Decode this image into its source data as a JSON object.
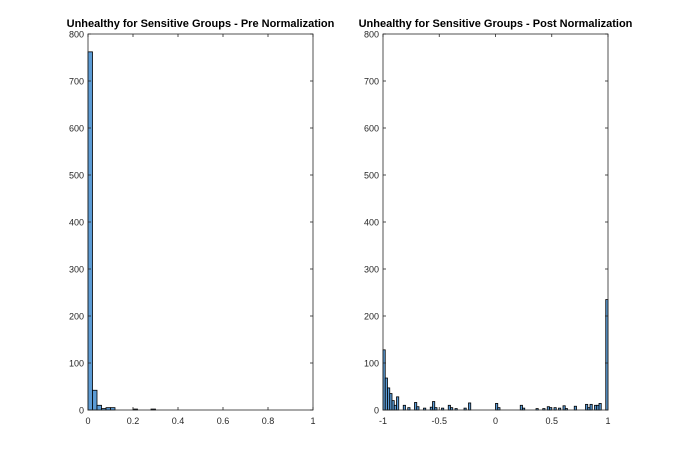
{
  "chart_data": [
    {
      "type": "bar",
      "title": "Unhealthy for Sensitive Groups - Pre Normalization",
      "xlabel": "",
      "ylabel": "",
      "xlim": [
        0,
        1
      ],
      "ylim": [
        0,
        800
      ],
      "xticks": [
        0,
        0.2,
        0.4,
        0.6,
        0.8,
        1
      ],
      "xtick_labels": [
        "0",
        "0.2",
        "0.4",
        "0.6",
        "0.8",
        "1"
      ],
      "yticks": [
        0,
        100,
        200,
        300,
        400,
        500,
        600,
        700,
        800
      ],
      "ytick_labels": [
        "0",
        "100",
        "200",
        "300",
        "400",
        "500",
        "600",
        "700",
        "800"
      ],
      "bin_width": 0.02,
      "bins": [
        {
          "start": 0.0,
          "value": 762
        },
        {
          "start": 0.02,
          "value": 42
        },
        {
          "start": 0.04,
          "value": 10
        },
        {
          "start": 0.06,
          "value": 3
        },
        {
          "start": 0.08,
          "value": 5
        },
        {
          "start": 0.1,
          "value": 5
        },
        {
          "start": 0.2,
          "value": 2
        },
        {
          "start": 0.28,
          "value": 2
        }
      ],
      "bar_color": "#5b9bd5",
      "edge_color": "#000000"
    },
    {
      "type": "bar",
      "title": "Unhealthy for Sensitive Groups - Post Normalization",
      "xlabel": "",
      "ylabel": "",
      "xlim": [
        -1,
        1
      ],
      "ylim": [
        0,
        800
      ],
      "xticks": [
        -1,
        -0.5,
        0,
        0.5,
        1
      ],
      "xtick_labels": [
        "-1",
        "-0.5",
        "0",
        "0.5",
        "1"
      ],
      "yticks": [
        0,
        100,
        200,
        300,
        400,
        500,
        600,
        700,
        800
      ],
      "ytick_labels": [
        "0",
        "100",
        "200",
        "300",
        "400",
        "500",
        "600",
        "700",
        "800"
      ],
      "bin_width": 0.02,
      "bins": [
        {
          "start": -1.0,
          "value": 128
        },
        {
          "start": -0.98,
          "value": 68
        },
        {
          "start": -0.96,
          "value": 47
        },
        {
          "start": -0.94,
          "value": 35
        },
        {
          "start": -0.92,
          "value": 20
        },
        {
          "start": -0.9,
          "value": 10
        },
        {
          "start": -0.88,
          "value": 28
        },
        {
          "start": -0.82,
          "value": 10
        },
        {
          "start": -0.78,
          "value": 5
        },
        {
          "start": -0.72,
          "value": 16
        },
        {
          "start": -0.7,
          "value": 7
        },
        {
          "start": -0.64,
          "value": 4
        },
        {
          "start": -0.58,
          "value": 6
        },
        {
          "start": -0.56,
          "value": 18
        },
        {
          "start": -0.54,
          "value": 5
        },
        {
          "start": -0.48,
          "value": 4
        },
        {
          "start": -0.42,
          "value": 10
        },
        {
          "start": -0.4,
          "value": 5
        },
        {
          "start": -0.36,
          "value": 3
        },
        {
          "start": -0.28,
          "value": 4
        },
        {
          "start": -0.24,
          "value": 15
        },
        {
          "start": 0.0,
          "value": 14
        },
        {
          "start": 0.02,
          "value": 5
        },
        {
          "start": 0.22,
          "value": 10
        },
        {
          "start": 0.24,
          "value": 4
        },
        {
          "start": 0.36,
          "value": 3
        },
        {
          "start": 0.42,
          "value": 3
        },
        {
          "start": 0.46,
          "value": 7
        },
        {
          "start": 0.48,
          "value": 5
        },
        {
          "start": 0.52,
          "value": 5
        },
        {
          "start": 0.56,
          "value": 4
        },
        {
          "start": 0.6,
          "value": 9
        },
        {
          "start": 0.62,
          "value": 3
        },
        {
          "start": 0.7,
          "value": 8
        },
        {
          "start": 0.8,
          "value": 12
        },
        {
          "start": 0.82,
          "value": 5
        },
        {
          "start": 0.84,
          "value": 12
        },
        {
          "start": 0.88,
          "value": 10
        },
        {
          "start": 0.9,
          "value": 10
        },
        {
          "start": 0.92,
          "value": 14
        },
        {
          "start": 0.98,
          "value": 235
        }
      ],
      "bar_color": "#5b9bd5",
      "edge_color": "#000000"
    }
  ]
}
